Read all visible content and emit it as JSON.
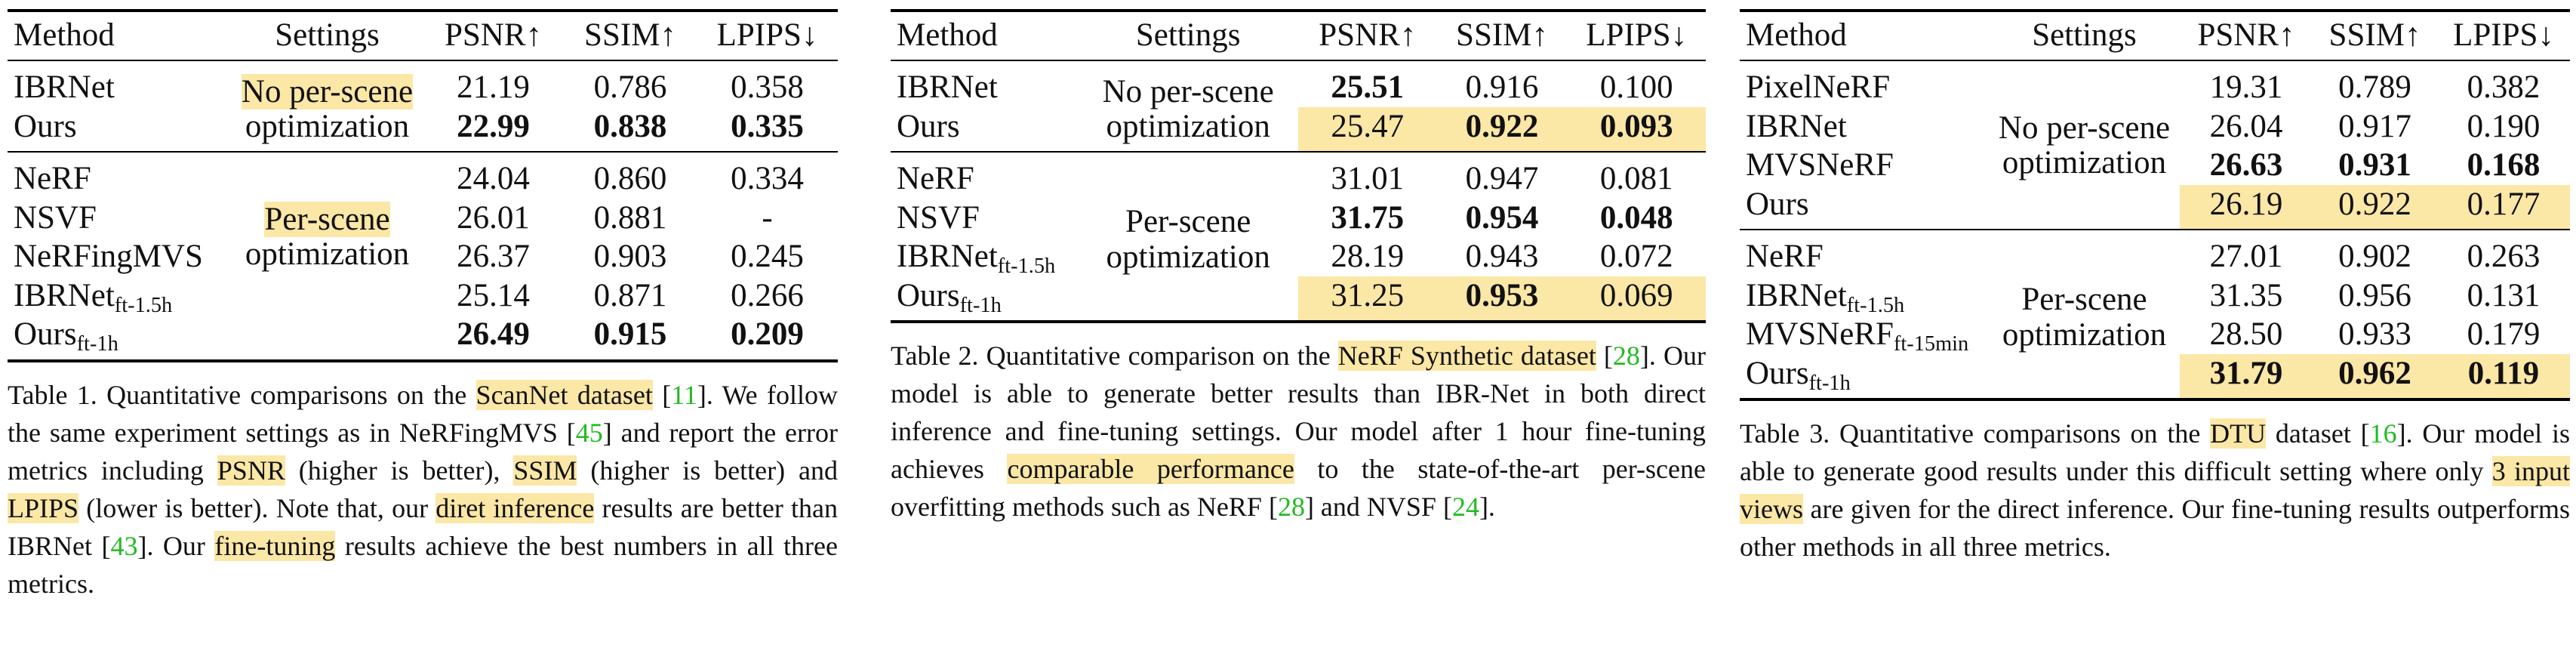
{
  "tables": [
    {
      "headers": [
        "Method",
        "Settings",
        "PSNR↑",
        "SSIM↑",
        "LPIPS↓"
      ],
      "groups": [
        {
          "settings": [
            "No per-scene",
            "optimization"
          ],
          "rows": [
            {
              "method": "IBRNet",
              "sub": "",
              "psnr": "21.19",
              "ssim": "0.786",
              "lpips": "0.358"
            },
            {
              "method": "Ours",
              "sub": "",
              "psnr": "22.99",
              "ssim": "0.838",
              "lpips": "0.335"
            }
          ]
        },
        {
          "settings": [
            "Per-scene",
            "optimization"
          ],
          "rows": [
            {
              "method": "NeRF",
              "sub": "",
              "psnr": "24.04",
              "ssim": "0.860",
              "lpips": "0.334"
            },
            {
              "method": "NSVF",
              "sub": "",
              "psnr": "26.01",
              "ssim": "0.881",
              "lpips": "-"
            },
            {
              "method": "NeRFingMVS",
              "sub": "",
              "psnr": "26.37",
              "ssim": "0.903",
              "lpips": "0.245"
            },
            {
              "method": "IBRNet",
              "sub": "ft-1.5h",
              "psnr": "25.14",
              "ssim": "0.871",
              "lpips": "0.266"
            },
            {
              "method": "Ours",
              "sub": "ft-1h",
              "psnr": "26.49",
              "ssim": "0.915",
              "lpips": "0.209"
            }
          ]
        }
      ],
      "caption": {
        "label": "Table 1.",
        "parts": [
          {
            "t": " Quantitative comparisons on the "
          },
          {
            "t": "ScanNet dataset",
            "hl": true
          },
          {
            "t": " ["
          },
          {
            "t": "11",
            "cite": true
          },
          {
            "t": "]. We follow the same experiment settings as in NeRFingMVS ["
          },
          {
            "t": "45",
            "cite": true
          },
          {
            "t": "] and report the error metrics including "
          },
          {
            "t": "PSNR",
            "hl": true
          },
          {
            "t": " (higher is better), "
          },
          {
            "t": "SSIM",
            "hl": true
          },
          {
            "t": " (higher is better) and "
          },
          {
            "t": "LPIPS",
            "hl": true
          },
          {
            "t": " (lower is better). Note that, our "
          },
          {
            "t": "diret inference",
            "hl": true
          },
          {
            "t": " results are better than IBRNet ["
          },
          {
            "t": "43",
            "cite": true
          },
          {
            "t": "]. Our "
          },
          {
            "t": "fine-tuning",
            "hl": true
          },
          {
            "t": " results achieve the best numbers in all three metrics."
          }
        ]
      }
    },
    {
      "headers": [
        "Method",
        "Settings",
        "PSNR↑",
        "SSIM↑",
        "LPIPS↓"
      ],
      "groups": [
        {
          "settings": [
            "No per-scene",
            "optimization"
          ],
          "rows": [
            {
              "method": "IBRNet",
              "sub": "",
              "psnr": "25.51",
              "ssim": "0.916",
              "lpips": "0.100"
            },
            {
              "method": "Ours",
              "sub": "",
              "psnr": "25.47",
              "ssim": "0.922",
              "lpips": "0.093"
            }
          ]
        },
        {
          "settings": [
            "Per-scene",
            "optimization"
          ],
          "rows": [
            {
              "method": "NeRF",
              "sub": "",
              "psnr": "31.01",
              "ssim": "0.947",
              "lpips": "0.081"
            },
            {
              "method": "NSVF",
              "sub": "",
              "psnr": "31.75",
              "ssim": "0.954",
              "lpips": "0.048"
            },
            {
              "method": "IBRNet",
              "sub": "ft-1.5h",
              "psnr": "28.19",
              "ssim": "0.943",
              "lpips": "0.072"
            },
            {
              "method": "Ours",
              "sub": "ft-1h",
              "psnr": "31.25",
              "ssim": "0.953",
              "lpips": "0.069"
            }
          ]
        }
      ],
      "caption": {
        "label": "Table 2.",
        "parts": [
          {
            "t": " Quantitative comparison on the "
          },
          {
            "t": "NeRF Synthetic dataset",
            "hl": true
          },
          {
            "t": " ["
          },
          {
            "t": "28",
            "cite": true
          },
          {
            "t": "]. Our model is able to generate better results than IBR-Net in both direct inference and fine-tuning settings. Our model after 1 hour fine-tuning achieves "
          },
          {
            "t": "comparable performance",
            "hl": true
          },
          {
            "t": " to the state-of-the-art per-scene overfitting methods such as NeRF ["
          },
          {
            "t": "28",
            "cite": true
          },
          {
            "t": "] and NVSF ["
          },
          {
            "t": "24",
            "cite": true
          },
          {
            "t": "]."
          }
        ]
      }
    },
    {
      "headers": [
        "Method",
        "Settings",
        "PSNR↑",
        "SSIM↑",
        "LPIPS↓"
      ],
      "groups": [
        {
          "settings": [
            "No per-scene",
            "optimization"
          ],
          "rows": [
            {
              "method": "PixelNeRF",
              "sub": "",
              "psnr": "19.31",
              "ssim": "0.789",
              "lpips": "0.382"
            },
            {
              "method": "IBRNet",
              "sub": "",
              "psnr": "26.04",
              "ssim": "0.917",
              "lpips": "0.190"
            },
            {
              "method": "MVSNeRF",
              "sub": "",
              "psnr": "26.63",
              "ssim": "0.931",
              "lpips": "0.168"
            },
            {
              "method": "Ours",
              "sub": "",
              "psnr": "26.19",
              "ssim": "0.922",
              "lpips": "0.177"
            }
          ]
        },
        {
          "settings": [
            "Per-scene",
            "optimization"
          ],
          "rows": [
            {
              "method": "NeRF",
              "sub": "",
              "psnr": "27.01",
              "ssim": "0.902",
              "lpips": "0.263"
            },
            {
              "method": "IBRNet",
              "sub": "ft-1.5h",
              "psnr": "31.35",
              "ssim": "0.956",
              "lpips": "0.131"
            },
            {
              "method": "MVSNeRF",
              "sub": "ft-15min",
              "psnr": "28.50",
              "ssim": "0.933",
              "lpips": "0.179"
            },
            {
              "method": "Ours",
              "sub": "ft-1h",
              "psnr": "31.79",
              "ssim": "0.962",
              "lpips": "0.119"
            }
          ]
        }
      ],
      "caption": {
        "label": "Table 3.",
        "parts": [
          {
            "t": " Quantitative comparisons on the "
          },
          {
            "t": "DTU",
            "hl": true
          },
          {
            "t": " dataset ["
          },
          {
            "t": "16",
            "cite": true
          },
          {
            "t": "]. Our model is able to generate good results under this difficult setting where only "
          },
          {
            "t": "3 input views",
            "hl": true
          },
          {
            "t": " are given for the direct inference. Our fine-tuning results outperforms other methods in all three metrics."
          }
        ]
      }
    }
  ]
}
